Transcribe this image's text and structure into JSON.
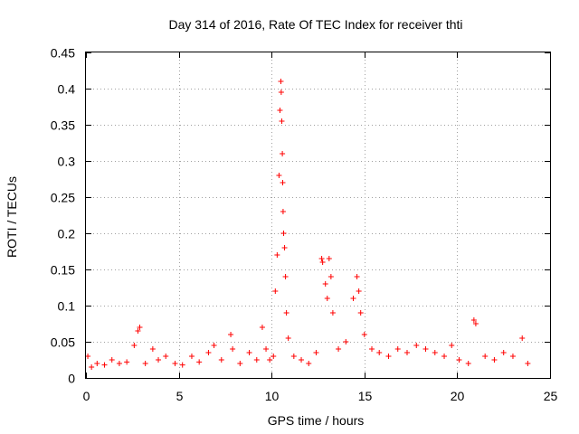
{
  "chart_data": {
    "type": "scatter",
    "title": "Day 314 of 2016, Rate Of TEC Index for receiver thti",
    "xlabel": "GPS time / hours",
    "ylabel": "ROTI / TECUs",
    "xlim": [
      0,
      25
    ],
    "ylim": [
      0,
      0.45
    ],
    "xticks": [
      0,
      5,
      10,
      15,
      20,
      25
    ],
    "xtick_labels": [
      "0",
      "5",
      "10",
      "15",
      "20",
      "25"
    ],
    "yticks": [
      0,
      0.05,
      0.1,
      0.15,
      0.2,
      0.25,
      0.3,
      0.35,
      0.4,
      0.45
    ],
    "ytick_labels": [
      "0",
      "0.05",
      "0.1",
      "0.15",
      "0.2",
      "0.25",
      "0.3",
      "0.35",
      "0.4",
      "0.45"
    ],
    "grid": true,
    "marker": "plus",
    "marker_color": "#ff0000",
    "series": [
      {
        "name": "ROTI",
        "x": [
          0.1,
          0.3,
          0.6,
          1.0,
          1.4,
          1.8,
          2.2,
          2.6,
          2.8,
          2.9,
          3.2,
          3.6,
          3.9,
          4.3,
          4.8,
          5.2,
          5.7,
          6.1,
          6.6,
          6.9,
          7.3,
          7.8,
          7.9,
          8.3,
          8.8,
          9.2,
          9.5,
          9.7,
          9.9,
          10.1,
          10.2,
          10.3,
          10.4,
          10.45,
          10.5,
          10.52,
          10.55,
          10.58,
          10.6,
          10.62,
          10.65,
          10.7,
          10.75,
          10.8,
          10.9,
          11.2,
          11.6,
          12.0,
          12.4,
          12.7,
          12.75,
          12.9,
          13.0,
          13.1,
          13.2,
          13.3,
          13.6,
          14.0,
          14.4,
          14.6,
          14.7,
          14.8,
          15.0,
          15.4,
          15.8,
          16.3,
          16.8,
          17.3,
          17.8,
          18.3,
          18.8,
          19.3,
          19.7,
          20.1,
          20.6,
          20.9,
          21.0,
          21.5,
          22.0,
          22.5,
          23.0,
          23.5,
          23.8
        ],
        "y": [
          0.03,
          0.015,
          0.02,
          0.018,
          0.025,
          0.02,
          0.022,
          0.045,
          0.065,
          0.07,
          0.02,
          0.04,
          0.025,
          0.03,
          0.02,
          0.018,
          0.03,
          0.022,
          0.035,
          0.045,
          0.025,
          0.06,
          0.04,
          0.02,
          0.035,
          0.025,
          0.07,
          0.04,
          0.025,
          0.03,
          0.12,
          0.17,
          0.28,
          0.37,
          0.41,
          0.395,
          0.355,
          0.31,
          0.27,
          0.23,
          0.2,
          0.18,
          0.14,
          0.09,
          0.055,
          0.03,
          0.025,
          0.02,
          0.035,
          0.165,
          0.16,
          0.13,
          0.11,
          0.165,
          0.14,
          0.09,
          0.04,
          0.05,
          0.11,
          0.14,
          0.12,
          0.09,
          0.06,
          0.04,
          0.035,
          0.03,
          0.04,
          0.035,
          0.045,
          0.04,
          0.035,
          0.03,
          0.045,
          0.025,
          0.02,
          0.08,
          0.075,
          0.03,
          0.025,
          0.035,
          0.03,
          0.055,
          0.02
        ]
      }
    ]
  }
}
